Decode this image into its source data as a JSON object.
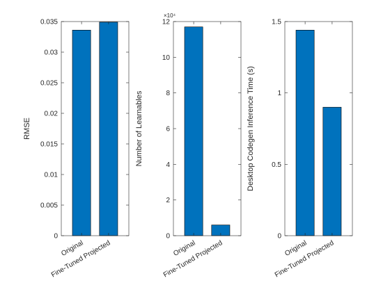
{
  "colors": {
    "bar_fill": "#0072BD",
    "bar_edge": "#000000",
    "axis": "#262626",
    "background": "#ffffff"
  },
  "chart_data": [
    {
      "type": "bar",
      "categories": [
        "Original",
        "Fine-Tuned Projected"
      ],
      "values": [
        0.0336,
        0.0349
      ],
      "ylabel": "RMSE",
      "ylim": [
        0,
        0.035
      ],
      "yticks": [
        0,
        0.005,
        0.01,
        0.015,
        0.02,
        0.025,
        0.03,
        0.035
      ],
      "ytick_labels": [
        "0",
        "0.005",
        "0.01",
        "0.015",
        "0.02",
        "0.025",
        "0.03",
        "0.035"
      ],
      "grid": false,
      "exponent_label": ""
    },
    {
      "type": "bar",
      "categories": [
        "Original",
        "Fine-Tuned Projected"
      ],
      "values": [
        117000,
        6000
      ],
      "ylabel": "Number of Learnables",
      "ylim": [
        0,
        120000
      ],
      "yticks": [
        0,
        20000,
        40000,
        60000,
        80000,
        100000,
        120000
      ],
      "ytick_labels": [
        "0",
        "2",
        "4",
        "6",
        "8",
        "10",
        "12"
      ],
      "grid": false,
      "exponent_label": "×10⁴"
    },
    {
      "type": "bar",
      "categories": [
        "Original",
        "Fine-Tuned Projected"
      ],
      "values": [
        1.44,
        0.9
      ],
      "ylabel": "Desktop Codegen Inference Time (s)",
      "ylim": [
        0,
        1.5
      ],
      "yticks": [
        0,
        0.5,
        1,
        1.5
      ],
      "ytick_labels": [
        "0",
        "0.5",
        "1",
        "1.5"
      ],
      "grid": false,
      "exponent_label": ""
    }
  ]
}
